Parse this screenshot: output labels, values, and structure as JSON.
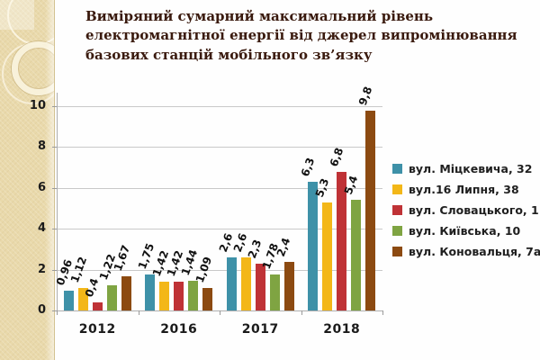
{
  "slide": {
    "title": "Виміряний сумарний максимальний рівень електромагнітної енергії від джерел випромінювання базових станцій мобільного зв’язку"
  },
  "colors": {
    "title_text": "#3a1a0e",
    "strip_background": "#e9d9ab",
    "plot_background": "#ffffff",
    "gridline": "#c9c9c9",
    "axis_line": "#aeaeae",
    "label_text": "#1b1b1b"
  },
  "chart_data": {
    "type": "bar",
    "title": "",
    "xlabel": "",
    "ylabel": "",
    "categories": [
      "2012",
      "2016",
      "2017",
      "2018"
    ],
    "series": [
      {
        "name": "вул. Міцкевича, 32",
        "color": "#3e91a8",
        "values": [
          0.96,
          1.75,
          2.6,
          6.3
        ],
        "labels": [
          "0,96",
          "1,75",
          "2,6",
          "6,3"
        ]
      },
      {
        "name": "вул.16 Липня, 38",
        "color": "#f3b718",
        "values": [
          1.12,
          1.42,
          2.6,
          5.3
        ],
        "labels": [
          "1,12",
          "1,42",
          "2,6",
          "5,3"
        ]
      },
      {
        "name": "вул. Словацького, 1",
        "color": "#bf3236",
        "values": [
          0.4,
          1.42,
          2.3,
          6.8
        ],
        "labels": [
          "0,4",
          "1,42",
          "2,3",
          "6,8"
        ]
      },
      {
        "name": "вул. Київська, 10",
        "color": "#7fa442",
        "values": [
          1.22,
          1.44,
          1.78,
          5.4
        ],
        "labels": [
          "1,22",
          "1,44",
          "1,78",
          "5,4"
        ]
      },
      {
        "name": "вул. Коновальця, 7а",
        "color": "#8c4a11",
        "values": [
          1.67,
          1.09,
          2.4,
          9.8
        ],
        "labels": [
          "1,67",
          "1,09",
          "2,4",
          "9,8"
        ]
      }
    ],
    "y_ticks": [
      0,
      2,
      4,
      6,
      8,
      10
    ],
    "y_tick_labels": [
      "0",
      "2",
      "4",
      "6",
      "8",
      "10"
    ],
    "ylim": [
      0,
      10
    ],
    "grid": true,
    "decimal_separator": ",",
    "legend_position": "right"
  }
}
